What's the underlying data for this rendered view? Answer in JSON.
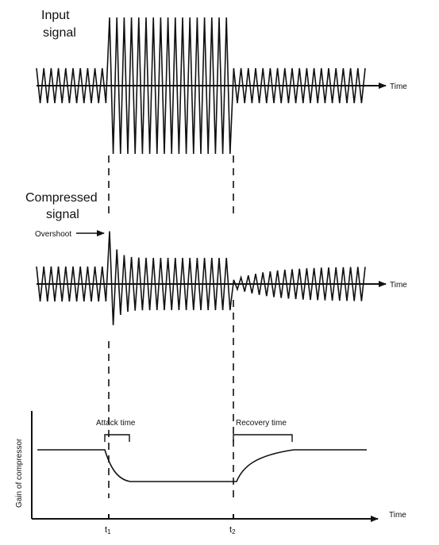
{
  "labels": {
    "input_signal": [
      "Input",
      "signal"
    ],
    "compressed_signal": [
      "Compressed",
      "signal"
    ],
    "overshoot": "Overshoot",
    "time_axis": "Time",
    "attack_time": "Attack time",
    "recovery_time": "Recovery time",
    "gain_axis": "Gain of compressor",
    "t1": "t",
    "t1_sub": "1",
    "t2": "t",
    "t2_sub": "2"
  }
}
